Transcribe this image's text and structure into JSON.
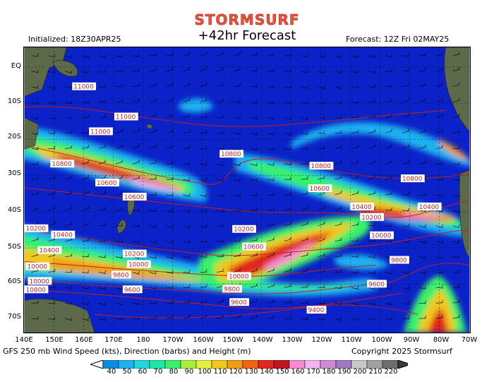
{
  "header": {
    "brand": "STORMSURF",
    "subtitle": "+42hr Forecast",
    "initialized": "Initialized: 18Z30APR25",
    "forecast": "Forecast: 12Z Fri 02MAY25"
  },
  "footer": {
    "caption": "GFS 250 mb Wind Speed (kts), Direction (barbs) and Height (m)",
    "copyright": "Copyright 2025 Stormsurf"
  },
  "axes": {
    "lat_labels": [
      "EQ",
      "10S",
      "20S",
      "30S",
      "40S",
      "50S",
      "60S",
      "70S"
    ],
    "lon_labels": [
      "140E",
      "150E",
      "160E",
      "170E",
      "180",
      "170W",
      "160W",
      "150W",
      "140W",
      "130W",
      "120W",
      "110W",
      "100W",
      "90W",
      "80W",
      "70W"
    ]
  },
  "colorbar": {
    "values": [
      "40",
      "50",
      "60",
      "70",
      "80",
      "90",
      "100",
      "110",
      "120",
      "130",
      "140",
      "150",
      "160",
      "170",
      "180",
      "190",
      "200",
      "210",
      "220"
    ],
    "colors": [
      "#0b8ce0",
      "#1fb0f0",
      "#22d6e0",
      "#1ee6a6",
      "#39f06a",
      "#a6f03c",
      "#e6f03c",
      "#f0c81e",
      "#f09c14",
      "#f06414",
      "#e0281e",
      "#c0141e",
      "#f58cd2",
      "#f0b4f0",
      "#d08cd2",
      "#a078c8",
      "#c8c8c8",
      "#a0a0a0",
      "#6e6e6e"
    ]
  },
  "map": {
    "ocean_color": "#0b22c8",
    "land_color": "#5c6a4a",
    "contour_color": "#c81e1e",
    "contour_labels": [
      "11000",
      "11000",
      "11000",
      "10800",
      "10800",
      "10800",
      "10800",
      "10600",
      "10600",
      "10600",
      "10400",
      "10400",
      "10400",
      "10200",
      "10200",
      "10200",
      "10000",
      "10000",
      "10000",
      "10000",
      "9800",
      "9800",
      "9600",
      "9600",
      "9600",
      "9400",
      "10800",
      "10400",
      "10600",
      "10000",
      "9800",
      "10200"
    ]
  }
}
